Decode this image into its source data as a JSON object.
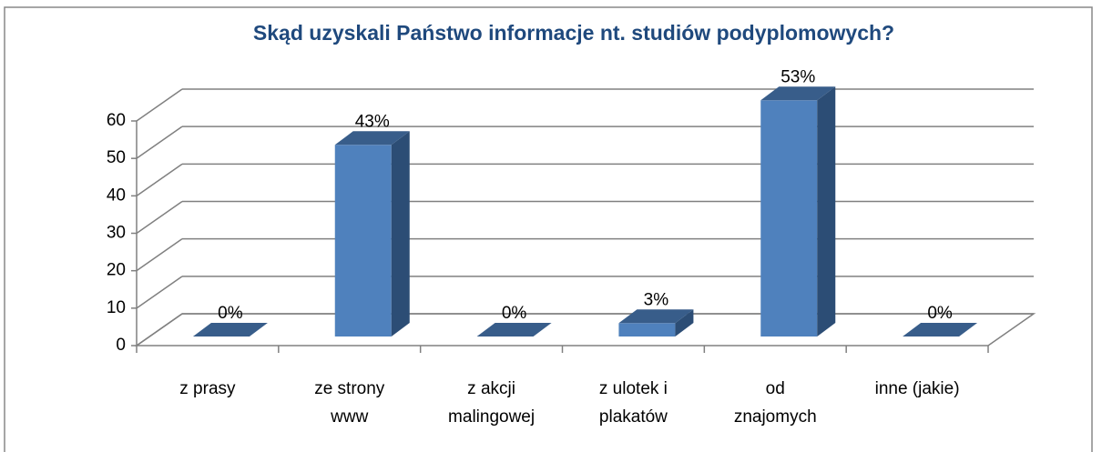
{
  "chart_data": {
    "type": "bar3d",
    "title": "Skąd uzyskali Państwo informacje nt. studiów podyplomowych?",
    "categories": [
      "z prasy",
      "ze strony www",
      "z akcji malingowej",
      "z ulotek i plakatów",
      "od znajomych",
      "inne (jakie)"
    ],
    "values": [
      0,
      43,
      0,
      3,
      53,
      0
    ],
    "value_labels": [
      "0%",
      "43%",
      "0%",
      "3%",
      "53%",
      "0%"
    ],
    "color": "#4f81bd",
    "ylim": [
      0,
      60
    ],
    "yticks": [
      0,
      10,
      20,
      30,
      40,
      50,
      60
    ],
    "grid": true
  }
}
